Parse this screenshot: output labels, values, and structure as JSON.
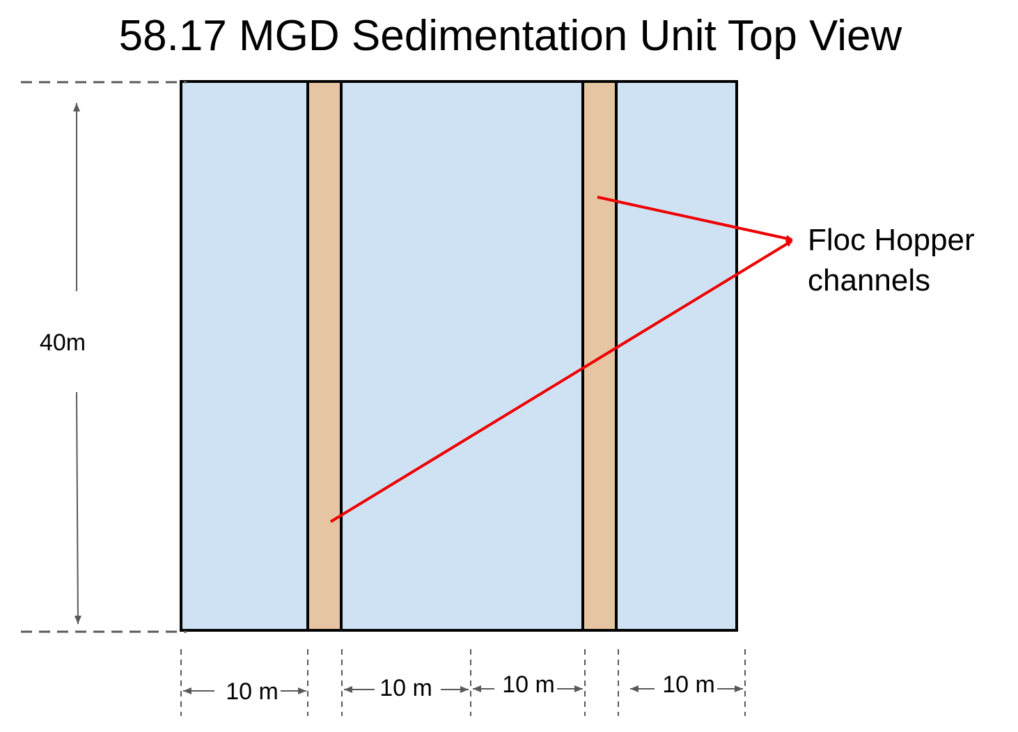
{
  "title": "58.17 MGD Sedimentation Unit Top View",
  "callout": {
    "line1": "Floc Hopper",
    "line2": "channels"
  },
  "dimensions": {
    "height_label": "40m",
    "width_labels": [
      "10 m",
      "10 m",
      "10 m",
      "10 m"
    ]
  },
  "colors": {
    "tank_fill": "#cfe2f3",
    "channel_fill": "#e6c5a3",
    "outline": "#000000",
    "callout_arrow": "#ee0000",
    "dimension_line": "#595959"
  }
}
